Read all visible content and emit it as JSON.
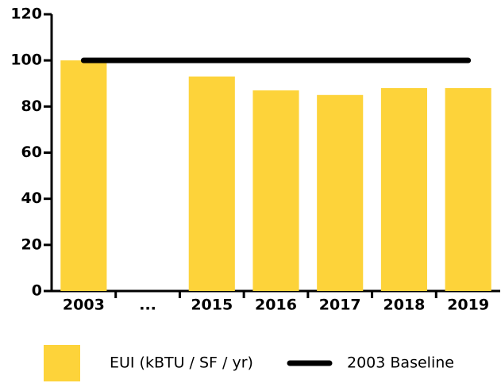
{
  "chart_data": {
    "type": "bar",
    "categories": [
      "2003",
      "...",
      "2015",
      "2016",
      "2017",
      "2018",
      "2019"
    ],
    "series": [
      {
        "name": "EUI (kBTU / SF / yr)",
        "type": "bar",
        "color": "#fdd33a",
        "values": [
          100,
          null,
          93,
          87,
          85,
          88,
          88
        ]
      },
      {
        "name": "2003 Baseline",
        "type": "line",
        "color": "#000000",
        "values": [
          100,
          100,
          100,
          100,
          100,
          100,
          100
        ]
      }
    ],
    "ylim": [
      0,
      120
    ],
    "yticks": [
      0,
      20,
      40,
      60,
      80,
      100,
      120
    ],
    "grid": false
  }
}
